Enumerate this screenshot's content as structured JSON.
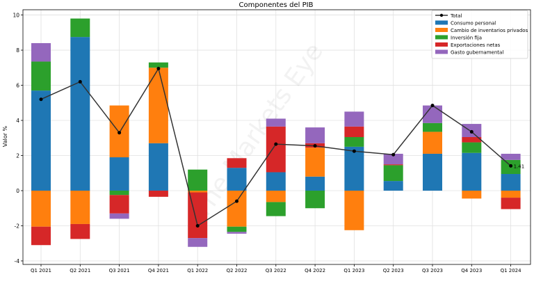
{
  "chart_data": {
    "type": "bar",
    "subtype": "stacked",
    "title": "Componentes del PIB",
    "xlabel": "",
    "ylabel": "Valor %",
    "ylim": [
      -4.2,
      10.3
    ],
    "yticks": [
      -4,
      -2,
      0,
      2,
      4,
      6,
      8,
      10
    ],
    "grid": true,
    "legend_position": "top-right",
    "watermark": "The Markets Eye",
    "categories": [
      "Q1 2021",
      "Q2 2021",
      "Q3 2021",
      "Q4 2021",
      "Q1 2022",
      "Q2 2022",
      "Q3 2022",
      "Q4 2022",
      "Q1 2023",
      "Q2 2023",
      "Q3 2023",
      "Q4 2023",
      "Q1 2024"
    ],
    "series": [
      {
        "name": "Consumo personal",
        "color": "#1f77b4",
        "values": [
          5.7,
          8.75,
          1.9,
          2.7,
          0.0,
          1.3,
          1.05,
          0.8,
          2.5,
          0.55,
          2.1,
          2.15,
          0.95
        ]
      },
      {
        "name": "Cambio de inventarios privados",
        "color": "#ff7f0e",
        "values": [
          -2.05,
          -1.9,
          2.95,
          4.3,
          -0.1,
          -2.05,
          -0.65,
          1.65,
          -2.25,
          0.0,
          1.25,
          -0.45,
          -0.4
        ]
      },
      {
        "name": "Inversión fija",
        "color": "#2ca02c",
        "values": [
          1.65,
          1.05,
          -0.25,
          0.3,
          1.2,
          -0.3,
          -0.8,
          -1.0,
          0.55,
          0.9,
          0.5,
          0.6,
          0.8
        ]
      },
      {
        "name": "Exportaciones netas",
        "color": "#d62728",
        "values": [
          -1.05,
          -0.85,
          -1.05,
          -0.35,
          -2.6,
          0.55,
          2.6,
          0.25,
          0.6,
          0.05,
          0.0,
          0.3,
          -0.65
        ]
      },
      {
        "name": "Gasto gubernamental",
        "color": "#9467bd",
        "values": [
          1.05,
          0.0,
          -0.3,
          0.0,
          -0.5,
          -0.1,
          0.45,
          0.9,
          0.85,
          0.6,
          1.0,
          0.75,
          0.35
        ]
      }
    ],
    "total": {
      "name": "Total",
      "color": "#333333",
      "values": [
        5.2,
        6.2,
        3.3,
        6.95,
        -2.0,
        -0.6,
        2.65,
        2.55,
        2.25,
        2.05,
        4.85,
        3.35,
        1.41
      ]
    },
    "annotations": [
      {
        "category": "Q1 2024",
        "text": "1.41"
      }
    ]
  }
}
